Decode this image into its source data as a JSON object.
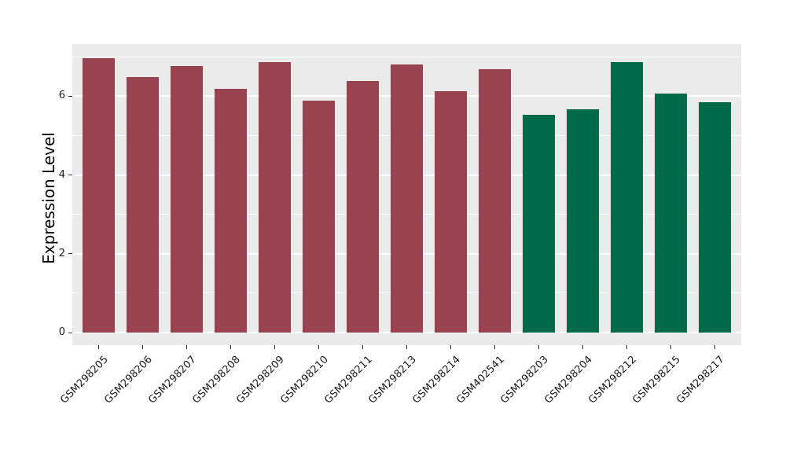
{
  "chart_data": {
    "type": "bar",
    "title": "",
    "ylabel": "Expression Level",
    "xlabel": "",
    "categories": [
      "GSM298205",
      "GSM298206",
      "GSM298207",
      "GSM298208",
      "GSM298209",
      "GSM298210",
      "GSM298211",
      "GSM298213",
      "GSM298214",
      "GSM402541",
      "GSM298203",
      "GSM298204",
      "GSM298212",
      "GSM298215",
      "GSM298217"
    ],
    "values": [
      6.97,
      6.48,
      6.77,
      6.19,
      6.87,
      5.88,
      6.39,
      6.81,
      6.12,
      6.68,
      5.53,
      5.67,
      6.87,
      6.07,
      5.84
    ],
    "bar_colors": [
      "#9a4350",
      "#9a4350",
      "#9a4350",
      "#9a4350",
      "#9a4350",
      "#9a4350",
      "#9a4350",
      "#9a4350",
      "#9a4350",
      "#9a4350",
      "#006948",
      "#006948",
      "#006948",
      "#006948",
      "#006948"
    ],
    "group_colors": {
      "group1": "#9a4350",
      "group2": "#006948"
    },
    "ytick_labels": [
      "0",
      "2",
      "4",
      "6"
    ],
    "yticks": [
      0,
      2,
      4,
      6
    ],
    "minor_gridlines": [
      1,
      3,
      5,
      7
    ],
    "ylim": [
      -0.33,
      7.32
    ],
    "grid": "on",
    "legend_position": "none",
    "panel_background": "#ebebeb",
    "grid_color": "#ffffff"
  }
}
